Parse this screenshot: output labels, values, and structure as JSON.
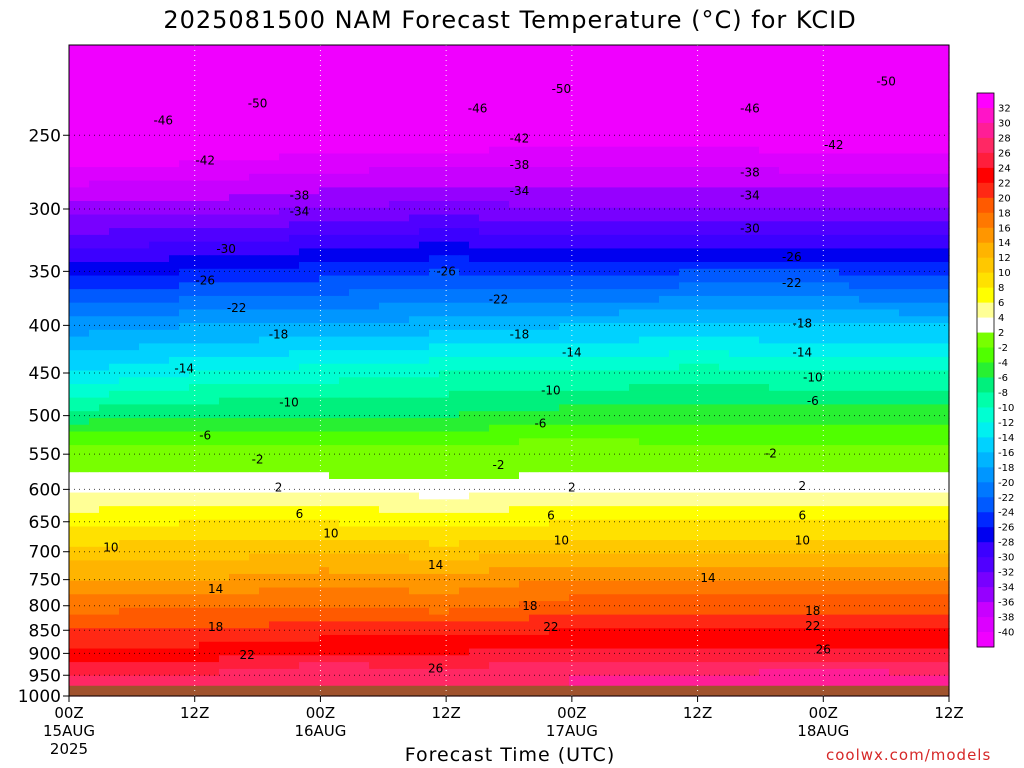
{
  "title": "2025081500 NAM Forecast Temperature (°C) for KCID",
  "credit": "coolwx.com/models",
  "chart_data": {
    "type": "heatmap",
    "title": "2025081500 NAM Forecast Temperature (°C) for KCID",
    "xlabel": "Forecast Time (UTC)",
    "ylabel": "",
    "y_axis": {
      "scale": "log-pressure",
      "ticks": [
        250,
        300,
        350,
        400,
        450,
        500,
        550,
        600,
        650,
        700,
        750,
        800,
        850,
        900,
        950,
        1000
      ],
      "range_hPa": [
        200,
        1000
      ]
    },
    "x_axis": {
      "range_hours": [
        0,
        84
      ],
      "ticks": [
        {
          "hour": 0,
          "label": "00Z",
          "date": "15AUG",
          "year": "2025"
        },
        {
          "hour": 12,
          "label": "12Z",
          "date": "",
          "year": ""
        },
        {
          "hour": 24,
          "label": "00Z",
          "date": "16AUG",
          "year": ""
        },
        {
          "hour": 36,
          "label": "12Z",
          "date": "",
          "year": ""
        },
        {
          "hour": 48,
          "label": "00Z",
          "date": "17AUG",
          "year": ""
        },
        {
          "hour": 60,
          "label": "12Z",
          "date": "",
          "year": ""
        },
        {
          "hour": 72,
          "label": "00Z",
          "date": "18AUG",
          "year": ""
        },
        {
          "hour": 84,
          "label": "12Z",
          "date": "",
          "year": ""
        }
      ]
    },
    "grid": true,
    "colorbar": {
      "labels": [
        "32",
        "30",
        "28",
        "26",
        "24",
        "22",
        "20",
        "18",
        "16",
        "14",
        "12",
        "10",
        "8",
        "6",
        "4",
        "2",
        "-2",
        "-4",
        "-6",
        "-8",
        "-10",
        "-12",
        "-14",
        "-16",
        "-18",
        "-20",
        "-22",
        "-24",
        "-26",
        "-28",
        "-30",
        "-32",
        "-34",
        "-36",
        "-38",
        "-40"
      ],
      "colors": [
        "#ff00ff",
        "#ff14c8",
        "#ff1e96",
        "#ff2864",
        "#ff1e3c",
        "#ff0000",
        "#ff2814",
        "#ff5a00",
        "#ff7800",
        "#ff9600",
        "#ffb400",
        "#ffc800",
        "#ffe100",
        "#ffff00",
        "#ffff96",
        "#ffffff",
        "#78ff00",
        "#50ff00",
        "#28f032",
        "#00f07d",
        "#00ffaa",
        "#00ffd2",
        "#00f0f0",
        "#00d2ff",
        "#00b4ff",
        "#0096ff",
        "#0078ff",
        "#005aff",
        "#0028ff",
        "#0000f0",
        "#3c00ff",
        "#5000ff",
        "#7800ff",
        "#9600ff",
        "#c800ff",
        "#dc00ff",
        "#f000ff"
      ]
    },
    "temperature_levels": [
      {
        "p": 200,
        "t": [
          -51,
          -51,
          -51,
          -51,
          -51,
          -51,
          -51,
          -51
        ]
      },
      {
        "p": 250,
        "t": [
          -44,
          -43,
          -42,
          -42,
          -41,
          -41,
          -42,
          -42
        ]
      },
      {
        "p": 300,
        "t": [
          -35,
          -35,
          -34,
          -33,
          -34,
          -34,
          -34,
          -34
        ]
      },
      {
        "p": 350,
        "t": [
          -27,
          -26,
          -25,
          -24,
          -25,
          -24,
          -24,
          -25
        ]
      },
      {
        "p": 400,
        "t": [
          -19,
          -18,
          -18,
          -17,
          -16,
          -16,
          -16,
          -16
        ]
      },
      {
        "p": 450,
        "t": [
          -14,
          -12,
          -11,
          -10,
          -10,
          -9,
          -10,
          -10
        ]
      },
      {
        "p": 500,
        "t": [
          -7,
          -6,
          -6,
          -6,
          -5,
          -5,
          -5,
          -5
        ]
      },
      {
        "p": 550,
        "t": [
          -1,
          -1,
          -1,
          -1,
          0,
          -1,
          -1,
          -1
        ]
      },
      {
        "p": 600,
        "t": [
          4,
          4,
          4,
          3,
          4,
          4,
          4,
          4
        ]
      },
      {
        "p": 650,
        "t": [
          7,
          8,
          8,
          7,
          8,
          8,
          8,
          8
        ]
      },
      {
        "p": 700,
        "t": [
          11,
          11,
          12,
          11,
          12,
          12,
          12,
          12
        ]
      },
      {
        "p": 750,
        "t": [
          14,
          14,
          15,
          15,
          16,
          16,
          16,
          16
        ]
      },
      {
        "p": 800,
        "t": [
          17,
          18,
          18,
          17,
          19,
          19,
          19,
          19
        ]
      },
      {
        "p": 850,
        "t": [
          20,
          20,
          21,
          21,
          22,
          22,
          22,
          22
        ]
      },
      {
        "p": 900,
        "t": [
          23,
          23,
          24,
          24,
          25,
          25,
          25,
          25
        ]
      },
      {
        "p": 950,
        "t": [
          26,
          26,
          28,
          27,
          28,
          28,
          29,
          28
        ]
      }
    ],
    "contour_labels": [
      {
        "text": "-50",
        "hour": 18,
        "p": 231
      },
      {
        "text": "-50",
        "hour": 47,
        "p": 223
      },
      {
        "text": "-50",
        "hour": 78,
        "p": 219
      },
      {
        "text": "-46",
        "hour": 9,
        "p": 241
      },
      {
        "text": "-46",
        "hour": 39,
        "p": 234
      },
      {
        "text": "-46",
        "hour": 65,
        "p": 234
      },
      {
        "text": "-42",
        "hour": 13,
        "p": 266
      },
      {
        "text": "-42",
        "hour": 43,
        "p": 252
      },
      {
        "text": "-42",
        "hour": 73,
        "p": 256
      },
      {
        "text": "-38",
        "hour": 22,
        "p": 290
      },
      {
        "text": "-38",
        "hour": 43,
        "p": 269
      },
      {
        "text": "-38",
        "hour": 65,
        "p": 274
      },
      {
        "text": "-34",
        "hour": 22,
        "p": 302
      },
      {
        "text": "-34",
        "hour": 43,
        "p": 287
      },
      {
        "text": "-34",
        "hour": 65,
        "p": 290
      },
      {
        "text": "-30",
        "hour": 15,
        "p": 331
      },
      {
        "text": "-30",
        "hour": 65,
        "p": 315
      },
      {
        "text": "-26",
        "hour": 13,
        "p": 358
      },
      {
        "text": "-26",
        "hour": 36,
        "p": 350
      },
      {
        "text": "-26",
        "hour": 69,
        "p": 338
      },
      {
        "text": "-22",
        "hour": 16,
        "p": 383
      },
      {
        "text": "-22",
        "hour": 41,
        "p": 375
      },
      {
        "text": "-22",
        "hour": 69,
        "p": 360
      },
      {
        "text": "-18",
        "hour": 20,
        "p": 409
      },
      {
        "text": "-18",
        "hour": 43,
        "p": 409
      },
      {
        "text": "-18",
        "hour": 70,
        "p": 398
      },
      {
        "text": "-14",
        "hour": 11,
        "p": 445
      },
      {
        "text": "-14",
        "hour": 48,
        "p": 428
      },
      {
        "text": "-14",
        "hour": 70,
        "p": 428
      },
      {
        "text": "-10",
        "hour": 21,
        "p": 484
      },
      {
        "text": "-10",
        "hour": 46,
        "p": 470
      },
      {
        "text": "-10",
        "hour": 71,
        "p": 455
      },
      {
        "text": "-6",
        "hour": 13,
        "p": 525
      },
      {
        "text": "-6",
        "hour": 45,
        "p": 510
      },
      {
        "text": "-6",
        "hour": 71,
        "p": 482
      },
      {
        "text": "-2",
        "hour": 18,
        "p": 557
      },
      {
        "text": "-2",
        "hour": 41,
        "p": 565
      },
      {
        "text": "-2",
        "hour": 67,
        "p": 549
      },
      {
        "text": "2",
        "hour": 20,
        "p": 597
      },
      {
        "text": "2",
        "hour": 48,
        "p": 597
      },
      {
        "text": "2",
        "hour": 70,
        "p": 595
      },
      {
        "text": "6",
        "hour": 22,
        "p": 638
      },
      {
        "text": "6",
        "hour": 46,
        "p": 640
      },
      {
        "text": "6",
        "hour": 70,
        "p": 640
      },
      {
        "text": "10",
        "hour": 4,
        "p": 693
      },
      {
        "text": "10",
        "hour": 25,
        "p": 669
      },
      {
        "text": "10",
        "hour": 47,
        "p": 681
      },
      {
        "text": "10",
        "hour": 70,
        "p": 681
      },
      {
        "text": "14",
        "hour": 14,
        "p": 768
      },
      {
        "text": "14",
        "hour": 35,
        "p": 723
      },
      {
        "text": "14",
        "hour": 61,
        "p": 747
      },
      {
        "text": "18",
        "hour": 14,
        "p": 843
      },
      {
        "text": "18",
        "hour": 44,
        "p": 801
      },
      {
        "text": "18",
        "hour": 71,
        "p": 810
      },
      {
        "text": "22",
        "hour": 17,
        "p": 904
      },
      {
        "text": "22",
        "hour": 46,
        "p": 843
      },
      {
        "text": "22",
        "hour": 71,
        "p": 841
      },
      {
        "text": "26",
        "hour": 35,
        "p": 934
      },
      {
        "text": "26",
        "hour": 72,
        "p": 891
      }
    ]
  }
}
